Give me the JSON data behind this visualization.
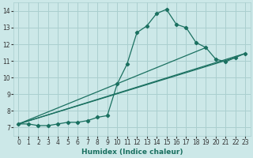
{
  "bg_color": "#cce8e8",
  "grid_color": "#aacfcf",
  "line_color": "#1a7060",
  "xlabel": "Humidex (Indice chaleur)",
  "ylim": [
    6.5,
    14.5
  ],
  "xlim": [
    -0.5,
    23.5
  ],
  "yticks": [
    7,
    8,
    9,
    10,
    11,
    12,
    13,
    14
  ],
  "xticks": [
    0,
    1,
    2,
    3,
    4,
    5,
    6,
    7,
    8,
    9,
    10,
    11,
    12,
    13,
    14,
    15,
    16,
    17,
    18,
    19,
    20,
    21,
    22,
    23
  ],
  "main_series_x": [
    0,
    1,
    2,
    3,
    4,
    5,
    6,
    7,
    8,
    9,
    10,
    11,
    12,
    13,
    14,
    15,
    16,
    17,
    18,
    19,
    20,
    21,
    22,
    23
  ],
  "main_series_y": [
    7.2,
    7.2,
    7.1,
    7.1,
    7.2,
    7.3,
    7.3,
    7.4,
    7.6,
    7.7,
    9.6,
    10.8,
    12.7,
    13.1,
    13.85,
    14.1,
    13.2,
    13.0,
    12.1,
    11.8,
    11.1,
    10.95,
    11.2,
    11.45
  ],
  "straight_lines": [
    {
      "x": [
        0,
        19
      ],
      "y": [
        7.2,
        11.8
      ]
    },
    {
      "x": [
        0,
        22
      ],
      "y": [
        7.2,
        11.2
      ]
    },
    {
      "x": [
        0,
        23
      ],
      "y": [
        7.2,
        11.45
      ]
    }
  ]
}
